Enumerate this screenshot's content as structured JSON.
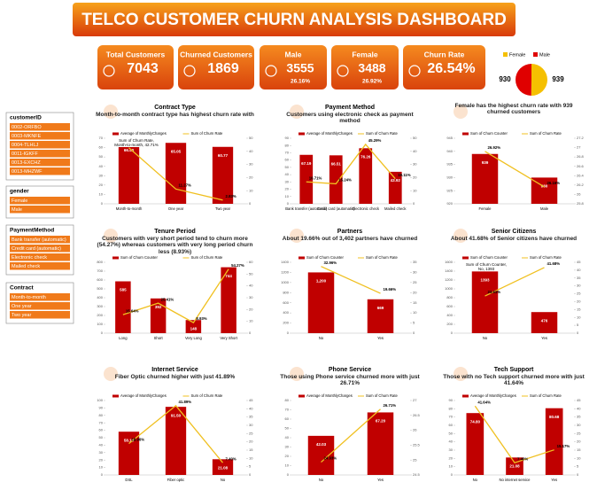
{
  "header": {
    "title": "TELCO CUSTOMER CHURN ANALYSIS DASHBOARD"
  },
  "kpis": [
    {
      "label": "Total Customers",
      "value": "7043"
    },
    {
      "label": "Churned Customers",
      "value": "1869"
    },
    {
      "label": "Male",
      "value": "3555",
      "note": "26.16%"
    },
    {
      "label": "Female",
      "value": "3488",
      "note": "26.92%"
    },
    {
      "label": "Churn Rate",
      "value": "26.54%"
    }
  ],
  "slicers": [
    {
      "title": "customerID",
      "items": [
        "0002-ORFBO",
        "0003-MKNFE",
        "0004-TLHLJ",
        "0011-IGKFF",
        "0013-EXCHZ",
        "0013-MHZWF"
      ]
    },
    {
      "title": "gender",
      "items": [
        "Female",
        "Male"
      ]
    },
    {
      "title": "PaymentMethod",
      "items": [
        "Bank transfer (automatic)",
        "Credit card (automatic)",
        "Electronic check",
        "Mailed check"
      ]
    },
    {
      "title": "Contract",
      "items": [
        "Month-to-month",
        "One year",
        "Two year"
      ]
    }
  ],
  "chart_data": [
    {
      "type": "pie",
      "categories": [
        "Female",
        "Male"
      ],
      "colors": [
        "#f5c000",
        "#e00000"
      ],
      "values": [
        939,
        930
      ]
    },
    {
      "type": "combo",
      "title": "Contract Type",
      "subtitle": "Month-to-month contract type has highest churn rate with",
      "annotation": "Sum of Churn Rate, Month-to-month, 42.71%",
      "categories": [
        "Month-to-month",
        "One year",
        "Two year"
      ],
      "ylim": [
        0,
        70
      ],
      "yticks": [
        0,
        10,
        20,
        30,
        40,
        50,
        60,
        70
      ],
      "y2lim": [
        0,
        50
      ],
      "y2ticks": [
        0,
        10,
        20,
        30,
        40,
        50
      ],
      "series": [
        {
          "name": "Average of MonthlyCharges",
          "color": "#c00000",
          "values": [
            66.4,
            65.05,
            60.77
          ],
          "value_labels": [
            "66.40",
            "65.05",
            "60.77"
          ]
        },
        {
          "name": "Sum of Churn Rate",
          "color": "#f0c020",
          "axis": "y2",
          "values": [
            42.71,
            11.27,
            2.83
          ],
          "value_labels": [
            "42.71%",
            "11.27%",
            "2.83%"
          ]
        }
      ]
    },
    {
      "type": "combo",
      "title": "Payment Method",
      "subtitle": "Customers using electronic check as payment method",
      "categories": [
        "Bank transfer (automatic)",
        "Credit card (automatic)",
        "Electronic check",
        "Mailed check"
      ],
      "ylim": [
        0,
        90
      ],
      "yticks": [
        0,
        10,
        20,
        30,
        40,
        50,
        60,
        70,
        80,
        90
      ],
      "y2lim": [
        0,
        50
      ],
      "y2ticks": [
        0,
        10,
        20,
        30,
        40,
        50
      ],
      "series": [
        {
          "name": "Average of MonthlyCharges",
          "color": "#c00000",
          "values": [
            67.19,
            66.51,
            76.26,
            43.92
          ]
        },
        {
          "name": "Sum of Churn Rate",
          "color": "#f0c020",
          "axis": "y2",
          "values": [
            16.71,
            15.24,
            45.29,
            19.11
          ],
          "value_labels": [
            "16.71%",
            "15.24%",
            "45.29%",
            "19.11%"
          ]
        }
      ]
    },
    {
      "type": "combo",
      "subtitle": "Female  has the highest churn rate with 939 churned customers",
      "categories": [
        "Female",
        "Male"
      ],
      "ylim": [
        920,
        945
      ],
      "yticks": [
        920,
        925,
        930,
        935,
        940,
        945
      ],
      "y2lim": [
        25.8,
        27.2
      ],
      "y2ticks": [
        25.8,
        26,
        26.2,
        26.4,
        26.6,
        26.8,
        27,
        27.2
      ],
      "series": [
        {
          "name": "Sum of Churn Counter",
          "color": "#c00000",
          "values": [
            939,
            930
          ]
        },
        {
          "name": "Sum of Churn Rate",
          "color": "#f0c020",
          "axis": "y2",
          "values": [
            26.92,
            26.16
          ],
          "value_labels": [
            "26.92%",
            "26.16%"
          ]
        }
      ]
    },
    {
      "type": "combo",
      "title": "Tenure Period",
      "subtitle": "Customers with very short period tend to churn more (54.27%) whereas customers with very long period churn less (8.93%)",
      "categories": [
        "Long",
        "Short",
        "Very Long",
        "Very Short"
      ],
      "ylim": [
        0,
        800
      ],
      "yticks": [
        0,
        100,
        200,
        300,
        400,
        500,
        600,
        700,
        800
      ],
      "y2lim": [
        0,
        60
      ],
      "y2ticks": [
        0,
        10,
        20,
        30,
        40,
        50,
        60
      ],
      "series": [
        {
          "name": "Sum of Churn Counter",
          "color": "#c00000",
          "values": [
            585,
            392,
            148,
            744
          ]
        },
        {
          "name": "Sum of Churn Rate",
          "color": "#f0c020",
          "axis": "y2",
          "values": [
            15.64,
            25.41,
            8.93,
            54.27
          ],
          "value_labels": [
            "15.64%",
            "25.41%",
            "8.93%",
            "54.27%"
          ]
        }
      ]
    },
    {
      "type": "combo",
      "title": "Partners",
      "subtitle": "About 19.66% out of 3,402 partners have churned",
      "categories": [
        "No",
        "Yes"
      ],
      "ylim": [
        0,
        1400
      ],
      "yticks": [
        0,
        200,
        400,
        600,
        800,
        1000,
        1200,
        1400
      ],
      "y2lim": [
        0,
        35
      ],
      "y2ticks": [
        0,
        5,
        10,
        15,
        20,
        25,
        30,
        35
      ],
      "series": [
        {
          "name": "Sum of Churn Counter",
          "color": "#c00000",
          "values": [
            1200,
            669
          ],
          "value_labels": [
            "1,200",
            "669"
          ]
        },
        {
          "name": "Sum of Churn Rate",
          "color": "#f0c020",
          "axis": "y2",
          "values": [
            32.96,
            19.66
          ],
          "value_labels": [
            "32.96%",
            "19.66%"
          ]
        }
      ]
    },
    {
      "type": "combo",
      "title": "Senior Citizens",
      "subtitle": "About 41.68% of Senior citizens have churned",
      "annotation": "Sum of Churn Counter, No, 1393",
      "categories": [
        "No",
        "Yes"
      ],
      "ylim": [
        0,
        1600
      ],
      "yticks": [
        0,
        200,
        400,
        600,
        800,
        1000,
        1200,
        1400,
        1600
      ],
      "y2lim": [
        0,
        45
      ],
      "y2ticks": [
        0,
        5,
        10,
        15,
        20,
        25,
        30,
        35,
        40,
        45
      ],
      "series": [
        {
          "name": "Sum of Churn Counter",
          "color": "#c00000",
          "values": [
            1393,
            476
          ]
        },
        {
          "name": "Sum of Churn Rate",
          "color": "#f0c020",
          "axis": "y2",
          "values": [
            23.61,
            41.68
          ],
          "value_labels": [
            "23.61%",
            "41.68%"
          ]
        }
      ]
    },
    {
      "type": "combo",
      "title": "Internet Service",
      "subtitle": "Fiber Optic churned higher with just 41.89%",
      "categories": [
        "DSL",
        "Fiber optic",
        "No"
      ],
      "ylim": [
        0,
        100
      ],
      "yticks": [
        0,
        10,
        20,
        30,
        40,
        50,
        60,
        70,
        80,
        90,
        100
      ],
      "y2lim": [
        0,
        45
      ],
      "y2ticks": [
        0,
        5,
        10,
        15,
        20,
        25,
        30,
        35,
        40,
        45
      ],
      "series": [
        {
          "name": "Average of MonthlyCharges",
          "color": "#c00000",
          "values": [
            58.1,
            91.5,
            21.08
          ],
          "value_labels": [
            "58.10",
            "91.50",
            "21.08"
          ]
        },
        {
          "name": "Sum of Churn Rate",
          "color": "#f0c020",
          "axis": "y2",
          "values": [
            18.96,
            41.89,
            7.4
          ],
          "value_labels": [
            "18.96%",
            "41.89%",
            "7.40%"
          ]
        }
      ]
    },
    {
      "type": "combo",
      "title": "Phone Service",
      "subtitle": "Those using Phone service churned more with just 26.71%",
      "categories": [
        "No",
        "Yes"
      ],
      "ylim": [
        0,
        80
      ],
      "yticks": [
        0,
        10,
        20,
        30,
        40,
        50,
        60,
        70,
        80
      ],
      "y2lim": [
        24.5,
        27
      ],
      "y2ticks": [
        24.5,
        25,
        25.5,
        26,
        26.5,
        27
      ],
      "series": [
        {
          "name": "Average of MonthlyCharges",
          "color": "#c00000",
          "values": [
            42.03,
            67.2
          ],
          "value_labels": [
            "42.03",
            "67.20"
          ]
        },
        {
          "name": "Sum of Churn Rate",
          "color": "#f0c020",
          "axis": "y2",
          "values": [
            24.93,
            26.71
          ],
          "value_labels": [
            "24.93%",
            "26.71%"
          ]
        }
      ]
    },
    {
      "type": "combo",
      "title": "Tech Support",
      "subtitle": "Those with no Tech support churned more with just 41.64%",
      "categories": [
        "No",
        "No internet service",
        "Yes"
      ],
      "ylim": [
        0,
        90
      ],
      "yticks": [
        0,
        10,
        20,
        30,
        40,
        50,
        60,
        70,
        80,
        90
      ],
      "y2lim": [
        0,
        45
      ],
      "y2ticks": [
        0,
        5,
        10,
        15,
        20,
        25,
        30,
        35,
        40,
        45
      ],
      "series": [
        {
          "name": "Average of MonthlyCharges",
          "color": "#c00000",
          "values": [
            74.8,
            21.08,
            80.68
          ],
          "value_labels": [
            "74.80",
            "21.08",
            "80.68"
          ]
        },
        {
          "name": "Sum of Churn Rate",
          "color": "#f0c020",
          "axis": "y2",
          "values": [
            41.64,
            7.4,
            15.17
          ],
          "value_labels": [
            "41.64%",
            "7.40%",
            "15.17%"
          ]
        }
      ]
    }
  ]
}
